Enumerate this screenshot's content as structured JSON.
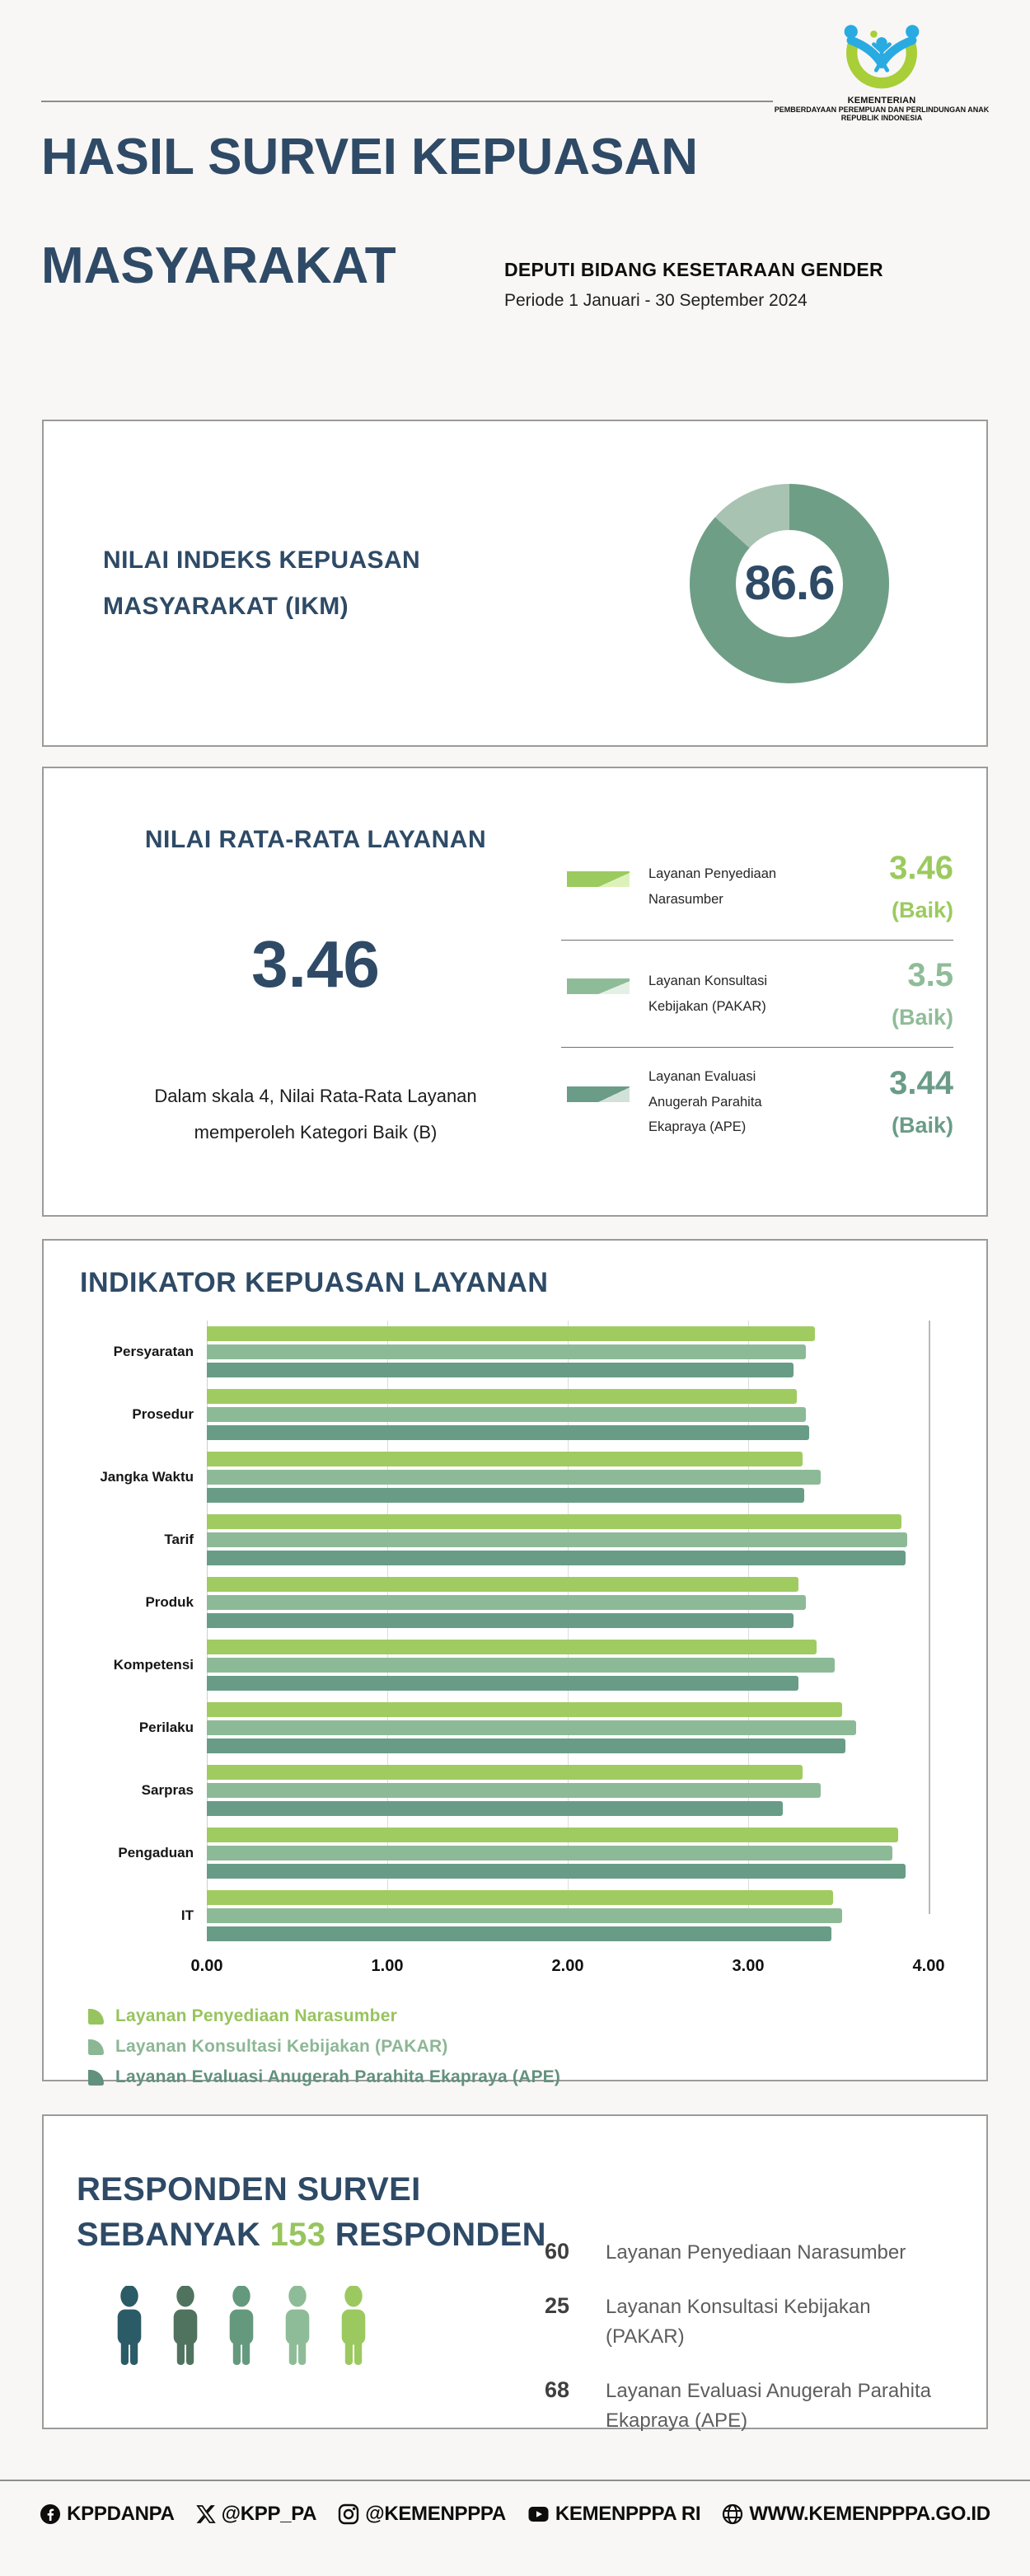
{
  "header": {
    "logo_line1": "KEMENTERIAN",
    "logo_line2": "PEMBERDAYAAN PEREMPUAN DAN PERLINDUNGAN ANAK",
    "logo_line3": "REPUBLIK INDONESIA",
    "title_line1": "HASIL SURVEI KEPUASAN",
    "title_line2": "MASYARAKAT",
    "subtitle": "DEPUTI BIDANG KESETARAAN GENDER",
    "period": "Periode 1 Januari - 30 September 2024"
  },
  "ikm": {
    "title": "NILAI INDEKS KEPUASAN MASYARAKAT (IKM)",
    "value": "86.6",
    "value_num": 86.6,
    "max": 100,
    "ring_color": "#6f9e87",
    "rest_color": "#a9c3b2",
    "value_color": "#2e4a66"
  },
  "average": {
    "title": "NILAI RATA-RATA LAYANAN",
    "value": "3.46",
    "caption_line1": "Dalam skala 4, Nilai Rata-Rata Layanan",
    "caption_line2": "memperoleh Kategori Baik (B)",
    "services": [
      {
        "label": "Layanan Penyediaan Narasumber",
        "value": "3.46",
        "value_num": 3.46,
        "max": 4,
        "rating": "(Baik)",
        "color": "#9bca5e",
        "rest_color": "#ddf2ba"
      },
      {
        "label": "Layanan Konsultasi Kebijakan (PAKAR)",
        "value": "3.5",
        "value_num": 3.5,
        "max": 4,
        "rating": "(Baik)",
        "color": "#8fbc98",
        "rest_color": "#e4f0e6"
      },
      {
        "label": "Layanan Evaluasi Anugerah Parahita Ekapraya (APE)",
        "value": "3.44",
        "value_num": 3.44,
        "max": 4,
        "rating": "(Baik)",
        "color": "#6a9c88",
        "rest_color": "#d2e2d8"
      }
    ]
  },
  "chart_data": [
    {
      "type": "pie",
      "subtype": "donut",
      "title": "NILAI INDEKS KEPUASAN MASYARAKAT (IKM)",
      "value": 86.6,
      "max": 100,
      "segments": [
        {
          "label": "IKM",
          "value": 86.6,
          "color": "#6f9e87"
        },
        {
          "label": "sisa",
          "value": 13.4,
          "color": "#a9c3b2"
        }
      ]
    },
    {
      "type": "gauge",
      "title": "NILAI RATA-RATA LAYANAN",
      "overall": 3.46,
      "scale_max": 4,
      "items": [
        {
          "label": "Layanan Penyediaan Narasumber",
          "value": 3.46,
          "rating": "Baik"
        },
        {
          "label": "Layanan Konsultasi Kebijakan (PAKAR)",
          "value": 3.5,
          "rating": "Baik"
        },
        {
          "label": "Layanan Evaluasi Anugerah Parahita Ekapraya (APE)",
          "value": 3.44,
          "rating": "Baik"
        }
      ]
    },
    {
      "type": "bar",
      "orientation": "horizontal",
      "title": "INDIKATOR KEPUASAN LAYANAN",
      "categories": [
        "Persyaratan",
        "Prosedur",
        "Jangka Waktu",
        "Tarif",
        "Produk",
        "Kompetensi",
        "Perilaku",
        "Sarpras",
        "Pengaduan",
        "IT"
      ],
      "series": [
        {
          "name": "Layanan Penyediaan Narasumber",
          "color": "#a0cb61",
          "legend_color": "#97c45e",
          "values": [
            3.37,
            3.27,
            3.3,
            3.85,
            3.28,
            3.38,
            3.52,
            3.3,
            3.83,
            3.47
          ]
        },
        {
          "name": "Layanan Konsultasi Kebijakan (PAKAR)",
          "color": "#8dba96",
          "legend_color": "#8cb795",
          "values": [
            3.32,
            3.32,
            3.4,
            3.88,
            3.32,
            3.48,
            3.6,
            3.4,
            3.8,
            3.52
          ]
        },
        {
          "name": "Layanan Evaluasi Anugerah Parahita Ekapraya (APE)",
          "color": "#699c87",
          "legend_color": "#62917e",
          "values": [
            3.25,
            3.34,
            3.31,
            3.87,
            3.25,
            3.28,
            3.54,
            3.19,
            3.87,
            3.46
          ]
        }
      ],
      "xlim": [
        0,
        4
      ],
      "x_ticks": [
        "0.00",
        "1.00",
        "2.00",
        "3.00",
        "4.00"
      ],
      "grid": true,
      "legend_position": "bottom"
    }
  ],
  "chart_section": {
    "title": "INDIKATOR KEPUASAN LAYANAN"
  },
  "respondents": {
    "title_line1": "RESPONDEN SURVEI",
    "title_prefix": "SEBANYAK",
    "title_count": "153",
    "title_suffix": "RESPONDEN",
    "person_colors": [
      "#2b5b66",
      "#50735f",
      "#65997e",
      "#8fbc98",
      "#9bc95f"
    ],
    "items": [
      {
        "count": "60",
        "label": "Layanan Penyediaan Narasumber"
      },
      {
        "count": "25",
        "label": "Layanan Konsultasi Kebijakan (PAKAR)"
      },
      {
        "count": "68",
        "label": "Layanan Evaluasi Anugerah Parahita Ekapraya (APE)"
      }
    ]
  },
  "footer": {
    "items": [
      {
        "icon": "facebook-icon",
        "label": "KPPDANPA"
      },
      {
        "icon": "x-icon",
        "label": "@KPP_PA"
      },
      {
        "icon": "instagram-icon",
        "label": "@KEMENPPPA"
      },
      {
        "icon": "youtube-icon",
        "label": "KEMENPPPA RI"
      },
      {
        "icon": "globe-icon",
        "label": "WWW.KEMENPPPA.GO.ID"
      }
    ]
  }
}
